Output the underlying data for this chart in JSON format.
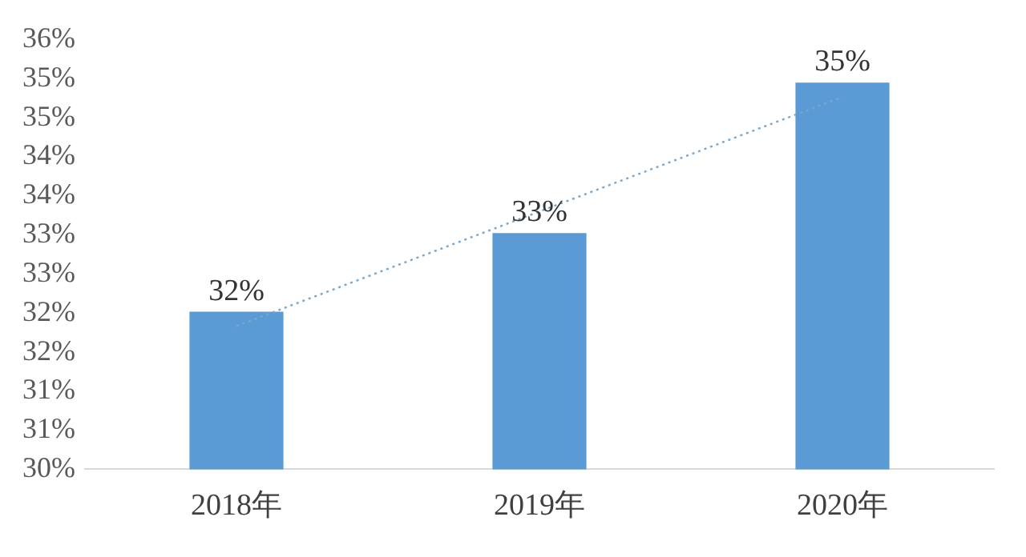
{
  "chart_data": {
    "type": "bar",
    "categories": [
      "2018年",
      "2019年",
      "2020年"
    ],
    "series": [
      {
        "color": "#5b9bd5",
        "values": [
          32.2,
          33.3,
          35.4
        ],
        "value_labels": [
          "32%",
          "33%",
          "35%"
        ]
      },
      {
        "type": "line",
        "color": "#7aa6c9",
        "values": [
          32.0,
          33.6,
          35.2
        ],
        "line_style": "dotted",
        "marker": "none"
      }
    ],
    "ylim": [
      30,
      36
    ],
    "yticks": [
      {
        "value": 30,
        "label": "30%"
      },
      {
        "value": 30.545,
        "label": "31%"
      },
      {
        "value": 31.091,
        "label": "31%"
      },
      {
        "value": 31.636,
        "label": "32%"
      },
      {
        "value": 32.182,
        "label": "32%"
      },
      {
        "value": 32.727,
        "label": "33%"
      },
      {
        "value": 33.273,
        "label": "33%"
      },
      {
        "value": 33.818,
        "label": "34%"
      },
      {
        "value": 34.364,
        "label": "34%"
      },
      {
        "value": 34.909,
        "label": "35%"
      },
      {
        "value": 35.455,
        "label": "35%"
      },
      {
        "value": 36,
        "label": "36%"
      }
    ],
    "grid": false,
    "legend": false
  }
}
